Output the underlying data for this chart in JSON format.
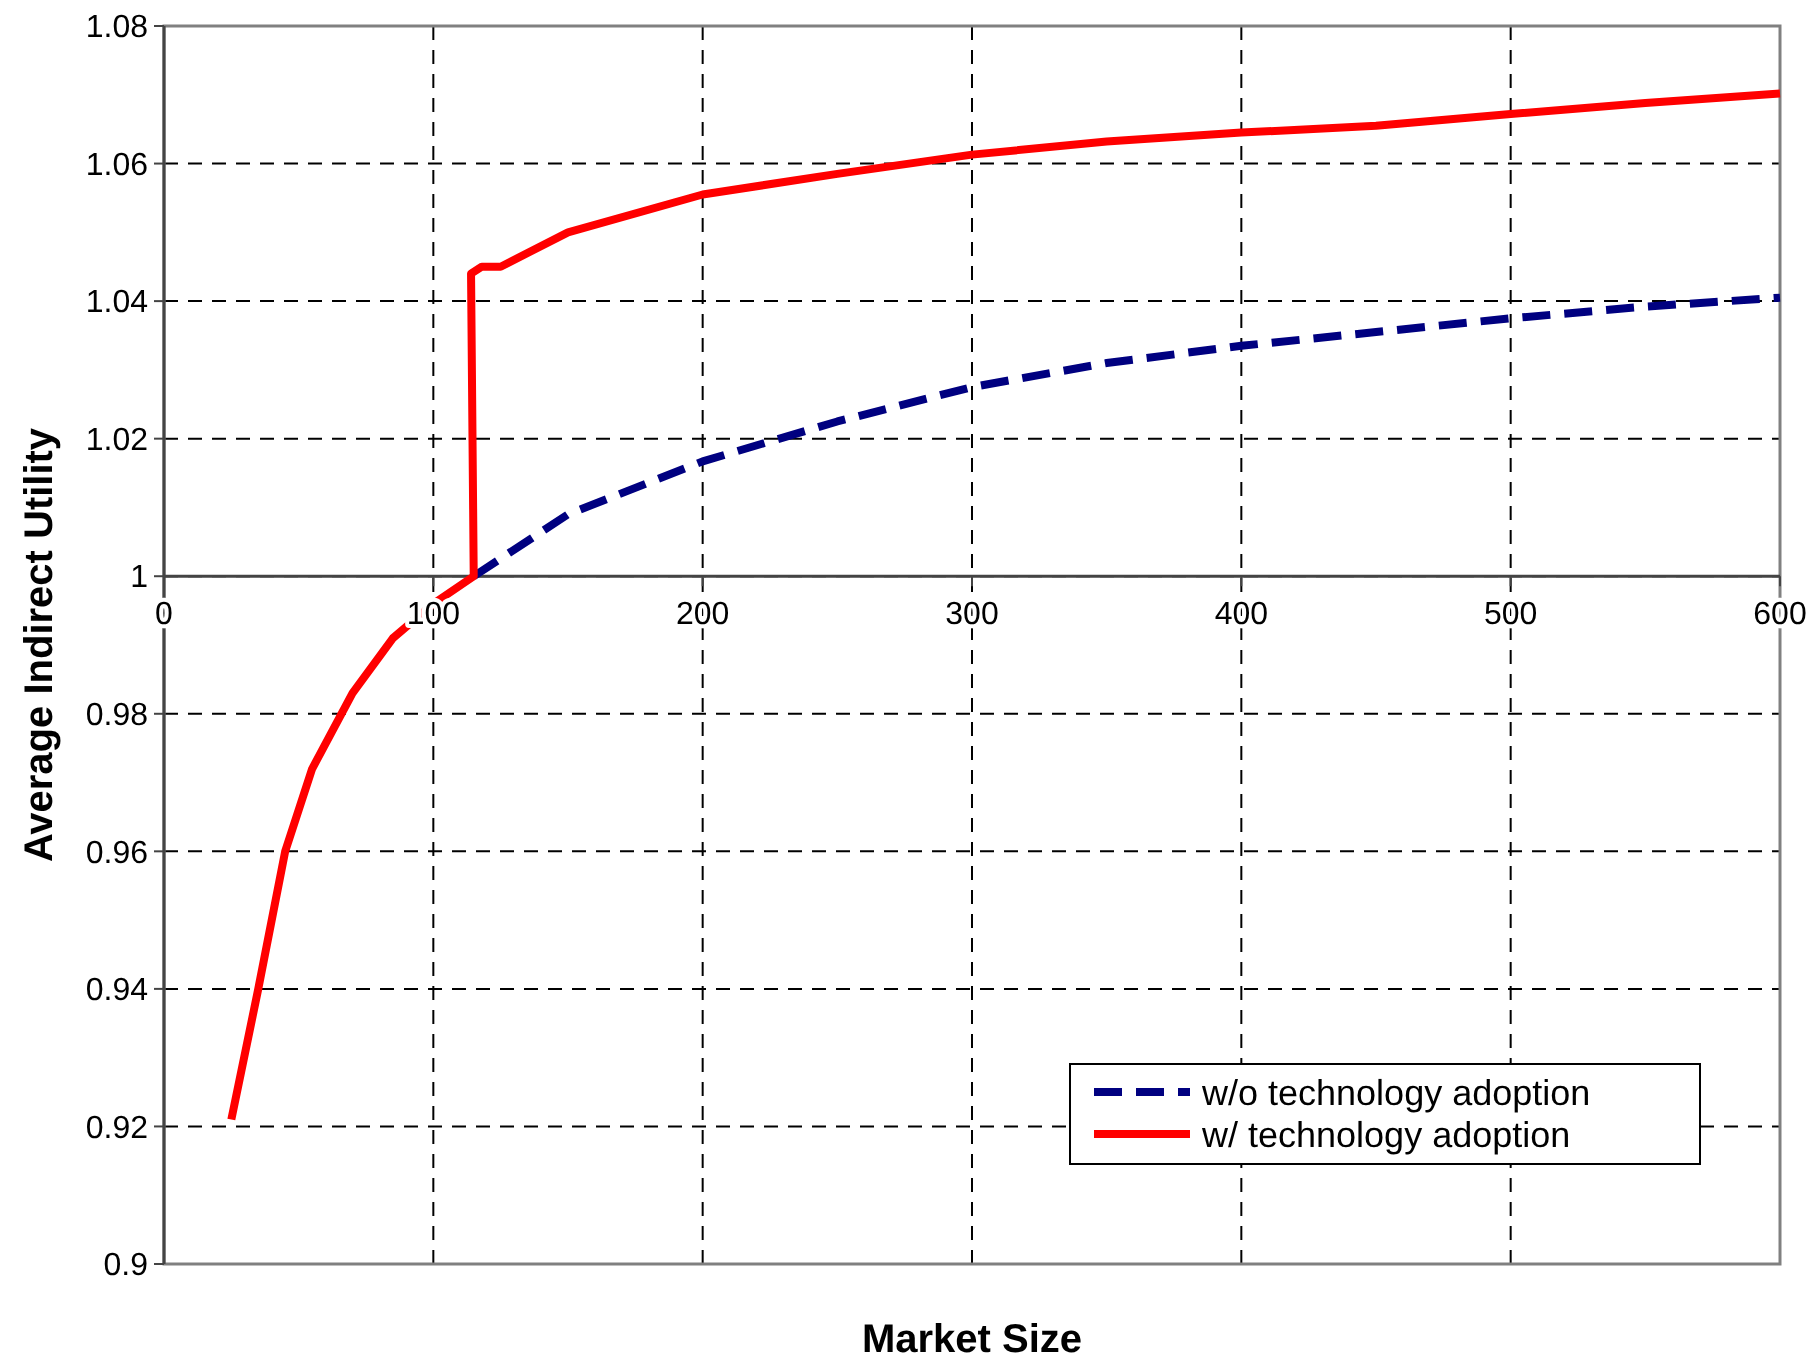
{
  "chart_data": {
    "type": "line",
    "xlabel": "Market Size",
    "ylabel": "Average Indirect Utility",
    "xlim": [
      0,
      600
    ],
    "ylim": [
      0.9,
      1.08
    ],
    "xticks": [
      0,
      100,
      200,
      300,
      400,
      500,
      600
    ],
    "yticks": [
      0.9,
      0.92,
      0.94,
      0.96,
      0.98,
      1,
      1.02,
      1.04,
      1.06,
      1.08
    ],
    "grid": true,
    "legend": "bottom right",
    "series": [
      {
        "name": "w/o technology adoption",
        "color": "#000080",
        "line_style": "dashed",
        "x": [
          115,
          150,
          200,
          250,
          300,
          350,
          400,
          450,
          500,
          550,
          600
        ],
        "values": [
          1.0,
          1.009,
          1.0167,
          1.0225,
          1.0275,
          1.031,
          1.0335,
          1.0355,
          1.0375,
          1.0392,
          1.0405
        ]
      },
      {
        "name": "w/ technology adoption",
        "color": "#ff0000",
        "line_style": "solid",
        "x": [
          25,
          35,
          45,
          55,
          70,
          85,
          100,
          115,
          114,
          118,
          125,
          150,
          200,
          250,
          300,
          350,
          400,
          450,
          500,
          550,
          600
        ],
        "values": [
          0.921,
          0.94,
          0.96,
          0.972,
          0.983,
          0.991,
          0.996,
          1.0,
          1.044,
          1.045,
          1.045,
          1.05,
          1.0555,
          1.0585,
          1.0613,
          1.0632,
          1.0645,
          1.0655,
          1.0672,
          1.0688,
          1.0702
        ]
      }
    ]
  }
}
